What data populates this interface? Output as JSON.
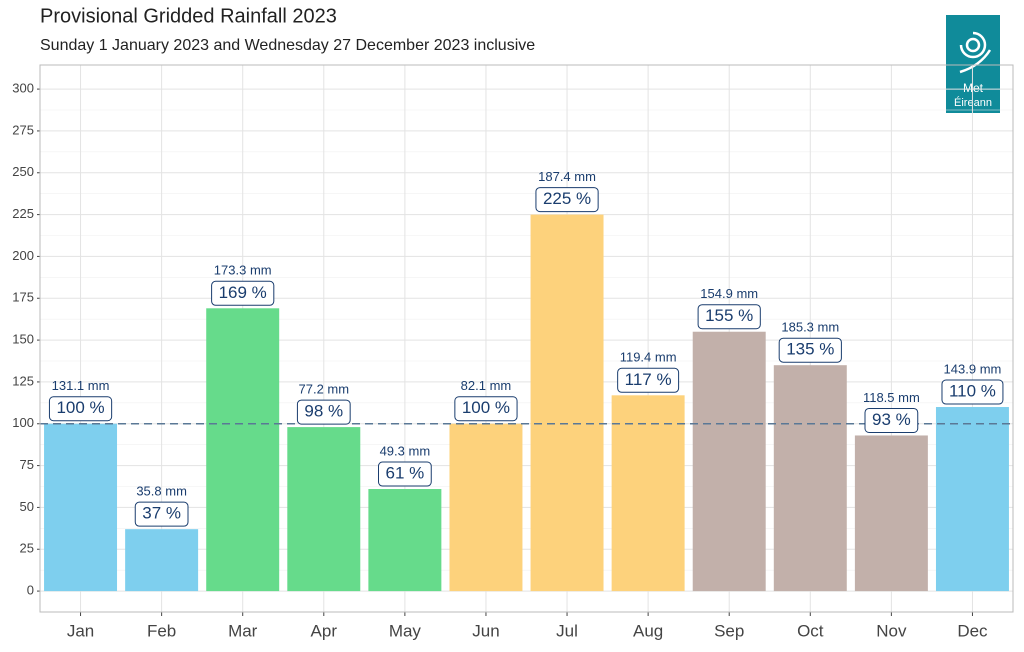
{
  "chart_data": {
    "type": "bar",
    "title": "Provisional Gridded Rainfall 2023",
    "subtitle": "Sunday 1 January 2023 and Wednesday 27 December 2023 inclusive",
    "logo_text": [
      "Met",
      "Éireann"
    ],
    "categories": [
      "Jan",
      "Feb",
      "Mar",
      "Apr",
      "May",
      "Jun",
      "Jul",
      "Aug",
      "Sep",
      "Oct",
      "Nov",
      "Dec"
    ],
    "values": [
      100,
      37,
      169,
      98,
      61,
      100,
      225,
      117,
      155,
      135,
      93,
      110
    ],
    "value_labels": [
      "100 %",
      "37 %",
      "169 %",
      "98 %",
      "61 %",
      "100 %",
      "225 %",
      "117 %",
      "155 %",
      "135 %",
      "93 %",
      "110 %"
    ],
    "rainfall_labels": [
      "131.1 mm",
      "35.8 mm",
      "173.3 mm",
      "77.2 mm",
      "49.3 mm",
      "82.1 mm",
      "187.4 mm",
      "119.4 mm",
      "154.9 mm",
      "185.3 mm",
      "118.5 mm",
      "143.9 mm"
    ],
    "colors": [
      "#7ecfee",
      "#7ecfee",
      "#66db8b",
      "#66db8b",
      "#66db8b",
      "#fdd27c",
      "#fdd27c",
      "#fdd27c",
      "#c2b0aa",
      "#c2b0aa",
      "#c2b0aa",
      "#7ecfee"
    ],
    "reference_line": 100,
    "ylim": [
      -12.5,
      314.4
    ],
    "yticks": [
      0,
      25,
      50,
      75,
      100,
      125,
      150,
      175,
      200,
      225,
      250,
      275,
      300
    ],
    "grid": true
  }
}
